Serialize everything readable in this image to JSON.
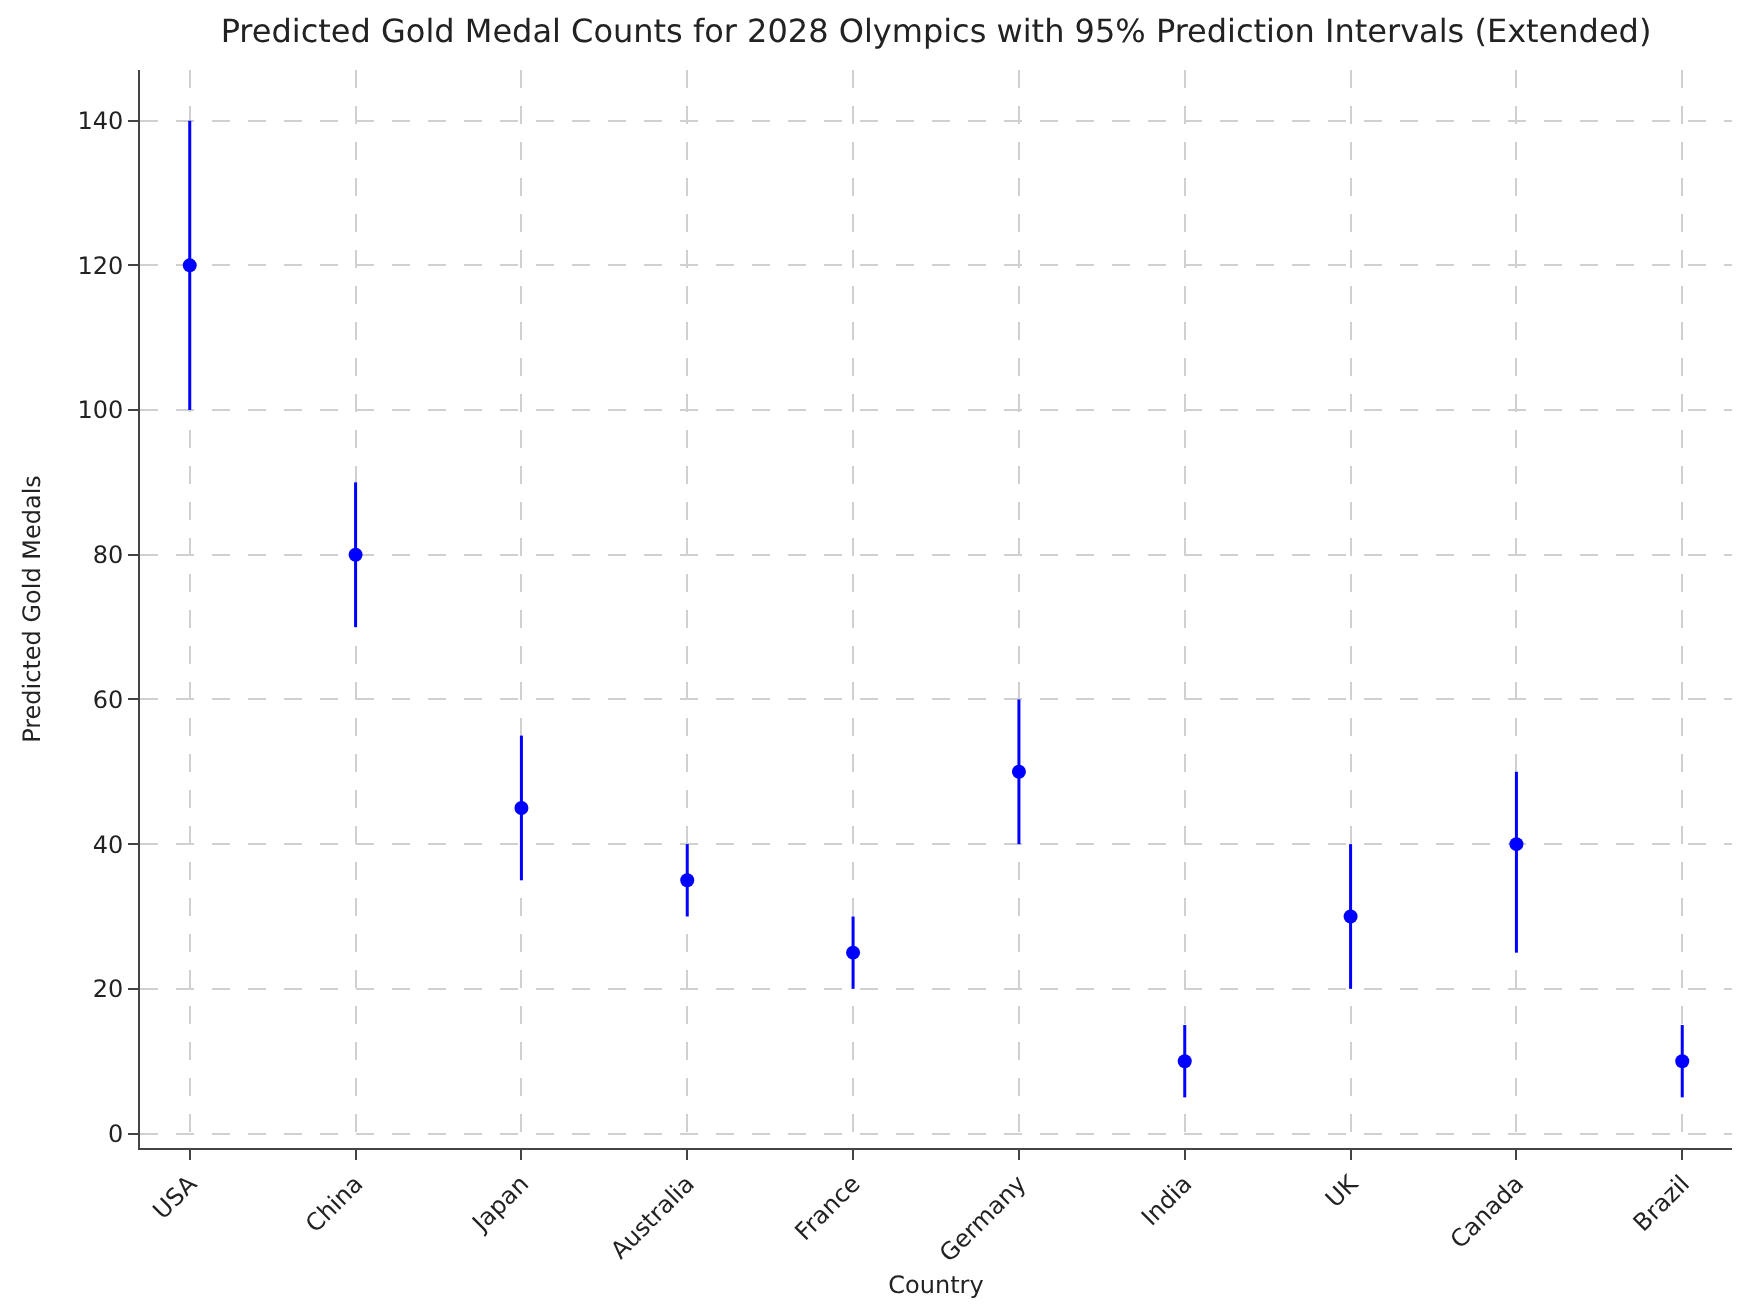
{
  "chart_data": {
    "type": "scatter",
    "title": "Predicted Gold Medal Counts for 2028 Olympics with 95% Prediction Intervals (Extended)",
    "xlabel": "Country",
    "ylabel": "Predicted Gold Medals",
    "categories": [
      "USA",
      "China",
      "Japan",
      "Australia",
      "France",
      "Germany",
      "India",
      "UK",
      "Canada",
      "Brazil"
    ],
    "series": [
      {
        "color": "#0000ff",
        "values": [
          120,
          80,
          45,
          35,
          25,
          50,
          10,
          30,
          40,
          10
        ],
        "errors": [
          [
            100,
            140
          ],
          [
            70,
            90
          ],
          [
            35,
            55
          ],
          [
            30,
            40
          ],
          [
            20,
            30
          ],
          [
            40,
            60
          ],
          [
            5,
            15
          ],
          [
            20,
            40
          ],
          [
            25,
            50
          ],
          [
            5,
            15
          ]
        ]
      }
    ],
    "ylim": [
      -2,
      147
    ],
    "yticks": [
      0,
      20,
      40,
      60,
      80,
      100,
      120,
      140
    ],
    "grid": true,
    "marker": "circle",
    "legend": false
  }
}
